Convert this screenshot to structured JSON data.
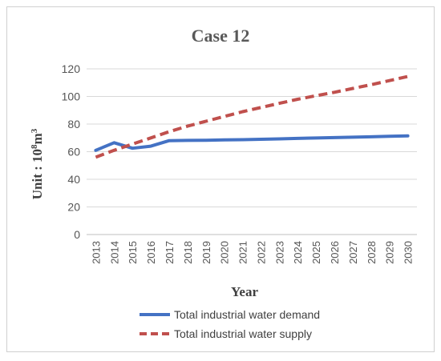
{
  "chart_data": {
    "type": "line",
    "title": "Case 12",
    "xlabel": "Year",
    "ylabel_parts": {
      "prefix": "Unit : 10",
      "exp1": "8",
      "mid": "m",
      "exp2": "3"
    },
    "ylim": [
      0,
      120
    ],
    "yticks": [
      0,
      20,
      40,
      60,
      80,
      100,
      120
    ],
    "x": [
      "2013",
      "2014",
      "2015",
      "2016",
      "2017",
      "2018",
      "2019",
      "2020",
      "2021",
      "2022",
      "2023",
      "2024",
      "2025",
      "2026",
      "2027",
      "2028",
      "2029",
      "2030"
    ],
    "grid": true,
    "legend_position": "bottom",
    "series": [
      {
        "name": "Total industrial water demand",
        "color": "#4472C4",
        "dash": "solid",
        "values": [
          61.0,
          66.5,
          62.5,
          64.0,
          68.0,
          68.2,
          68.3,
          68.5,
          68.7,
          69.0,
          69.3,
          69.6,
          69.9,
          70.2,
          70.5,
          70.8,
          71.2,
          71.5
        ]
      },
      {
        "name": "Total industrial water supply",
        "color": "#C0504D",
        "dash": "dashed",
        "values": [
          56.0,
          61.0,
          65.5,
          70.0,
          74.5,
          78.5,
          82.0,
          85.5,
          89.0,
          92.0,
          95.0,
          98.0,
          100.5,
          103.0,
          105.8,
          108.5,
          111.5,
          114.5
        ]
      }
    ]
  }
}
